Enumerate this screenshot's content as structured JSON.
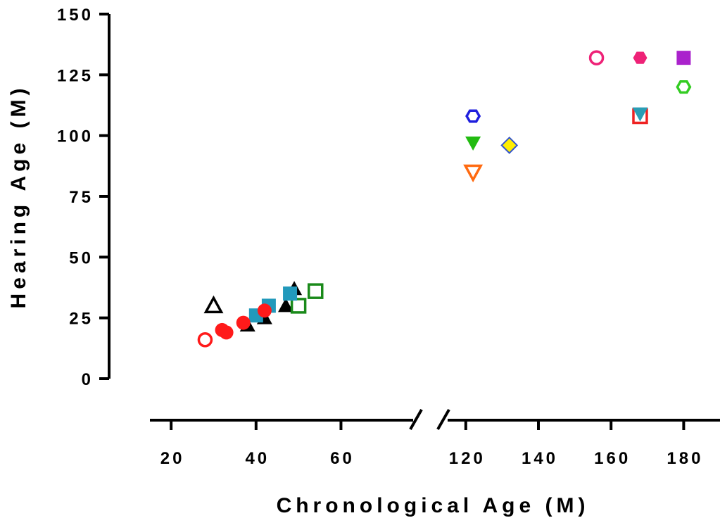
{
  "chart_data": {
    "type": "scatter",
    "title": "",
    "xlabel": "Chronological Age (M)",
    "ylabel": "Hearing Age (M)",
    "x_axis": {
      "broken": true,
      "segments": [
        {
          "range": [
            15,
            77
          ],
          "ticks": [
            20,
            40,
            60
          ]
        },
        {
          "range": [
            115,
            190
          ],
          "ticks": [
            120,
            140,
            160,
            180
          ]
        }
      ]
    },
    "y_axis": {
      "range": [
        0,
        150
      ],
      "ticks": [
        0,
        25,
        50,
        75,
        100,
        125,
        150
      ]
    },
    "tick_labels": {
      "x": [
        "20",
        "40",
        "60",
        "120",
        "140",
        "160",
        "180"
      ],
      "y": [
        "0",
        "25",
        "50",
        "75",
        "100",
        "125",
        "150"
      ]
    },
    "grid": false,
    "legend": "none",
    "points": [
      {
        "x": 30,
        "y": 30,
        "marker": "triangle-up-open",
        "color": "#000000"
      },
      {
        "x": 38,
        "y": 22,
        "marker": "triangle-up",
        "color": "#000000"
      },
      {
        "x": 42,
        "y": 25,
        "marker": "triangle-up",
        "color": "#000000"
      },
      {
        "x": 47,
        "y": 30,
        "marker": "triangle-up",
        "color": "#000000"
      },
      {
        "x": 49,
        "y": 37,
        "marker": "triangle-up",
        "color": "#000000"
      },
      {
        "x": 50,
        "y": 30,
        "marker": "square-open",
        "color": "#1a8a1a"
      },
      {
        "x": 54,
        "y": 36,
        "marker": "square-open",
        "color": "#1a8a1a"
      },
      {
        "x": 40,
        "y": 26,
        "marker": "square",
        "color": "#2299bb"
      },
      {
        "x": 43,
        "y": 30,
        "marker": "square",
        "color": "#2299bb"
      },
      {
        "x": 48,
        "y": 35,
        "marker": "square",
        "color": "#2299bb"
      },
      {
        "x": 28,
        "y": 16,
        "marker": "circle-open",
        "color": "#ff1a1a"
      },
      {
        "x": 32,
        "y": 20,
        "marker": "circle",
        "color": "#ff1a1a"
      },
      {
        "x": 33,
        "y": 19,
        "marker": "circle",
        "color": "#ff1a1a"
      },
      {
        "x": 37,
        "y": 23,
        "marker": "circle",
        "color": "#ff1a1a"
      },
      {
        "x": 42,
        "y": 28,
        "marker": "circle",
        "color": "#ff1a1a"
      },
      {
        "x": 122,
        "y": 108,
        "marker": "hexagon-open",
        "color": "#1f1fdd"
      },
      {
        "x": 122,
        "y": 97,
        "marker": "triangle-down",
        "color": "#22bb11"
      },
      {
        "x": 122,
        "y": 85,
        "marker": "triangle-down-open",
        "color": "#ff6a10"
      },
      {
        "x": 132,
        "y": 96,
        "marker": "diamond",
        "color": "#ffee00",
        "stroke": "#3355cc"
      },
      {
        "x": 156,
        "y": 132,
        "marker": "circle-open",
        "color": "#ee2277"
      },
      {
        "x": 168,
        "y": 132,
        "marker": "hexagon",
        "color": "#ee2277"
      },
      {
        "x": 168,
        "y": 108,
        "marker": "square-open",
        "color": "#ee2222"
      },
      {
        "x": 168,
        "y": 109,
        "marker": "triangle-down",
        "color": "#2a9db5"
      },
      {
        "x": 180,
        "y": 132,
        "marker": "square",
        "color": "#aa22cc"
      },
      {
        "x": 180,
        "y": 120,
        "marker": "hexagon-open",
        "color": "#33cc22"
      }
    ]
  }
}
